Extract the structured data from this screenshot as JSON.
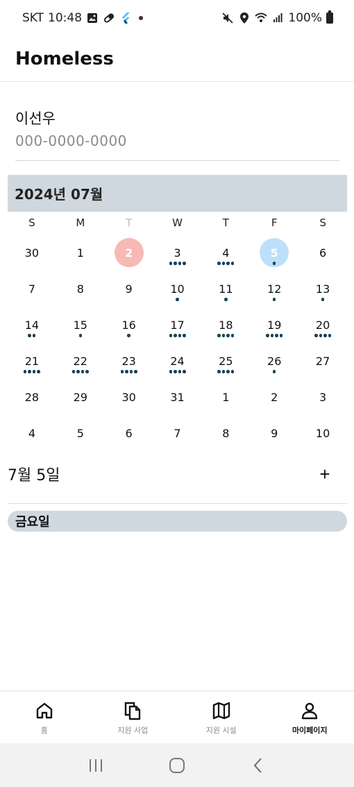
{
  "status_bar": {
    "carrier": "SKT",
    "time": "10:48",
    "battery": "100%",
    "left_icons": [
      "image-icon",
      "pill-icon",
      "flutter-icon",
      "dot-icon"
    ],
    "right_icons": [
      "mute-icon",
      "location-icon",
      "wifi-icon",
      "signal-icon",
      "battery-icon"
    ]
  },
  "app": {
    "title": "Homeless"
  },
  "profile": {
    "name": "이선우",
    "phone": "000-0000-0000"
  },
  "calendar": {
    "title": "2024년 07월",
    "weekdays": [
      "S",
      "M",
      "T",
      "W",
      "T",
      "F",
      "S"
    ],
    "today_index": 2,
    "selected_day": 5,
    "weeks": [
      [
        {
          "d": "30",
          "dots": 0
        },
        {
          "d": "1",
          "dots": 0
        },
        {
          "d": "2",
          "dots": 0,
          "today": true
        },
        {
          "d": "3",
          "dots": 4
        },
        {
          "d": "4",
          "dots": 4
        },
        {
          "d": "5",
          "dots": 1,
          "selected": true
        },
        {
          "d": "6",
          "dots": 0
        }
      ],
      [
        {
          "d": "7",
          "dots": 0
        },
        {
          "d": "8",
          "dots": 0
        },
        {
          "d": "9",
          "dots": 0
        },
        {
          "d": "10",
          "dots": 1
        },
        {
          "d": "11",
          "dots": 1
        },
        {
          "d": "12",
          "dots": 1
        },
        {
          "d": "13",
          "dots": 1
        }
      ],
      [
        {
          "d": "14",
          "dots": 2
        },
        {
          "d": "15",
          "dots": 1
        },
        {
          "d": "16",
          "dots": 1
        },
        {
          "d": "17",
          "dots": 4
        },
        {
          "d": "18",
          "dots": 4
        },
        {
          "d": "19",
          "dots": 4
        },
        {
          "d": "20",
          "dots": 4
        }
      ],
      [
        {
          "d": "21",
          "dots": 4
        },
        {
          "d": "22",
          "dots": 4
        },
        {
          "d": "23",
          "dots": 4
        },
        {
          "d": "24",
          "dots": 4
        },
        {
          "d": "25",
          "dots": 4
        },
        {
          "d": "26",
          "dots": 1
        },
        {
          "d": "27",
          "dots": 0
        }
      ],
      [
        {
          "d": "28",
          "dots": 0
        },
        {
          "d": "29",
          "dots": 0
        },
        {
          "d": "30",
          "dots": 0
        },
        {
          "d": "31",
          "dots": 0
        },
        {
          "d": "1",
          "dots": 0
        },
        {
          "d": "2",
          "dots": 0
        },
        {
          "d": "3",
          "dots": 0
        }
      ],
      [
        {
          "d": "4",
          "dots": 0
        },
        {
          "d": "5",
          "dots": 0
        },
        {
          "d": "6",
          "dots": 0
        },
        {
          "d": "7",
          "dots": 0
        },
        {
          "d": "8",
          "dots": 0
        },
        {
          "d": "9",
          "dots": 0
        },
        {
          "d": "10",
          "dots": 0
        }
      ]
    ],
    "colors": {
      "header_bg": "#cfd8de",
      "today_bg": "#f7b9b4",
      "selected_bg": "#bde0f8",
      "dot": "#15445a"
    }
  },
  "selected": {
    "date_label": "7월 5일",
    "add_label": "+",
    "day_label": "금요일"
  },
  "bottom_nav": {
    "items": [
      {
        "label": "홈",
        "icon": "home-icon",
        "active": false
      },
      {
        "label": "지원 사업",
        "icon": "documents-icon",
        "active": false
      },
      {
        "label": "지원 시설",
        "icon": "map-icon",
        "active": false
      },
      {
        "label": "마이페이지",
        "icon": "person-icon",
        "active": true
      }
    ]
  },
  "system_nav": {
    "icons": [
      "recent-apps-icon",
      "home-circle-icon",
      "back-icon"
    ]
  }
}
